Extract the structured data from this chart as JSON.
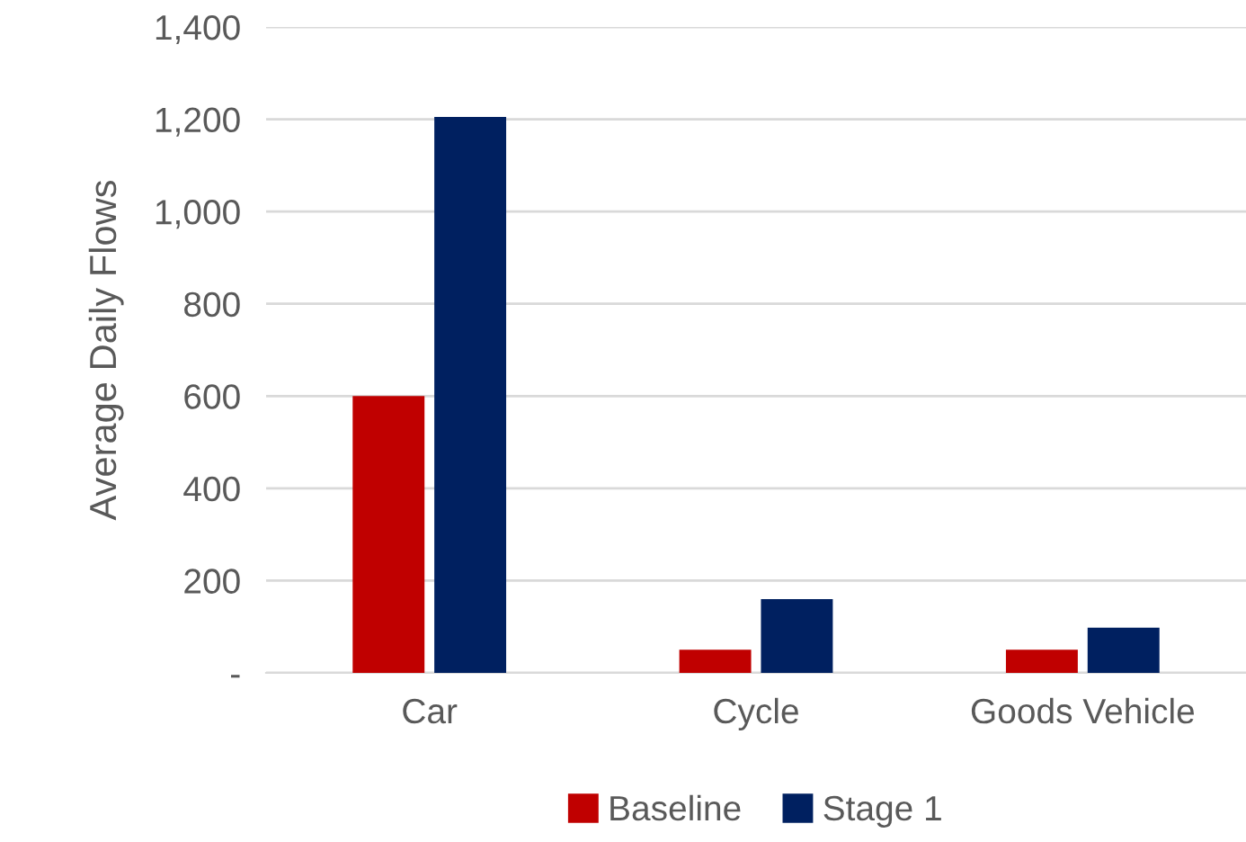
{
  "chart_data": {
    "type": "bar",
    "ylabel": "Average Daily Flows",
    "categories": [
      "Car",
      "Cycle",
      "Goods Vehicle"
    ],
    "series": [
      {
        "name": "Baseline",
        "color": "#c00000",
        "values": [
          600,
          50,
          50
        ]
      },
      {
        "name": "Stage 1",
        "color": "#002060",
        "values": [
          1205,
          160,
          98
        ]
      }
    ],
    "ylim": [
      0,
      1400
    ],
    "yticks": [
      {
        "value": 0,
        "label": "-"
      },
      {
        "value": 200,
        "label": "200"
      },
      {
        "value": 400,
        "label": "400"
      },
      {
        "value": 600,
        "label": "600"
      },
      {
        "value": 800,
        "label": "800"
      },
      {
        "value": 1000,
        "label": "1,000"
      },
      {
        "value": 1200,
        "label": "1,200"
      },
      {
        "value": 1400,
        "label": "1,400"
      }
    ],
    "grid": "y",
    "legend": "bottom"
  }
}
